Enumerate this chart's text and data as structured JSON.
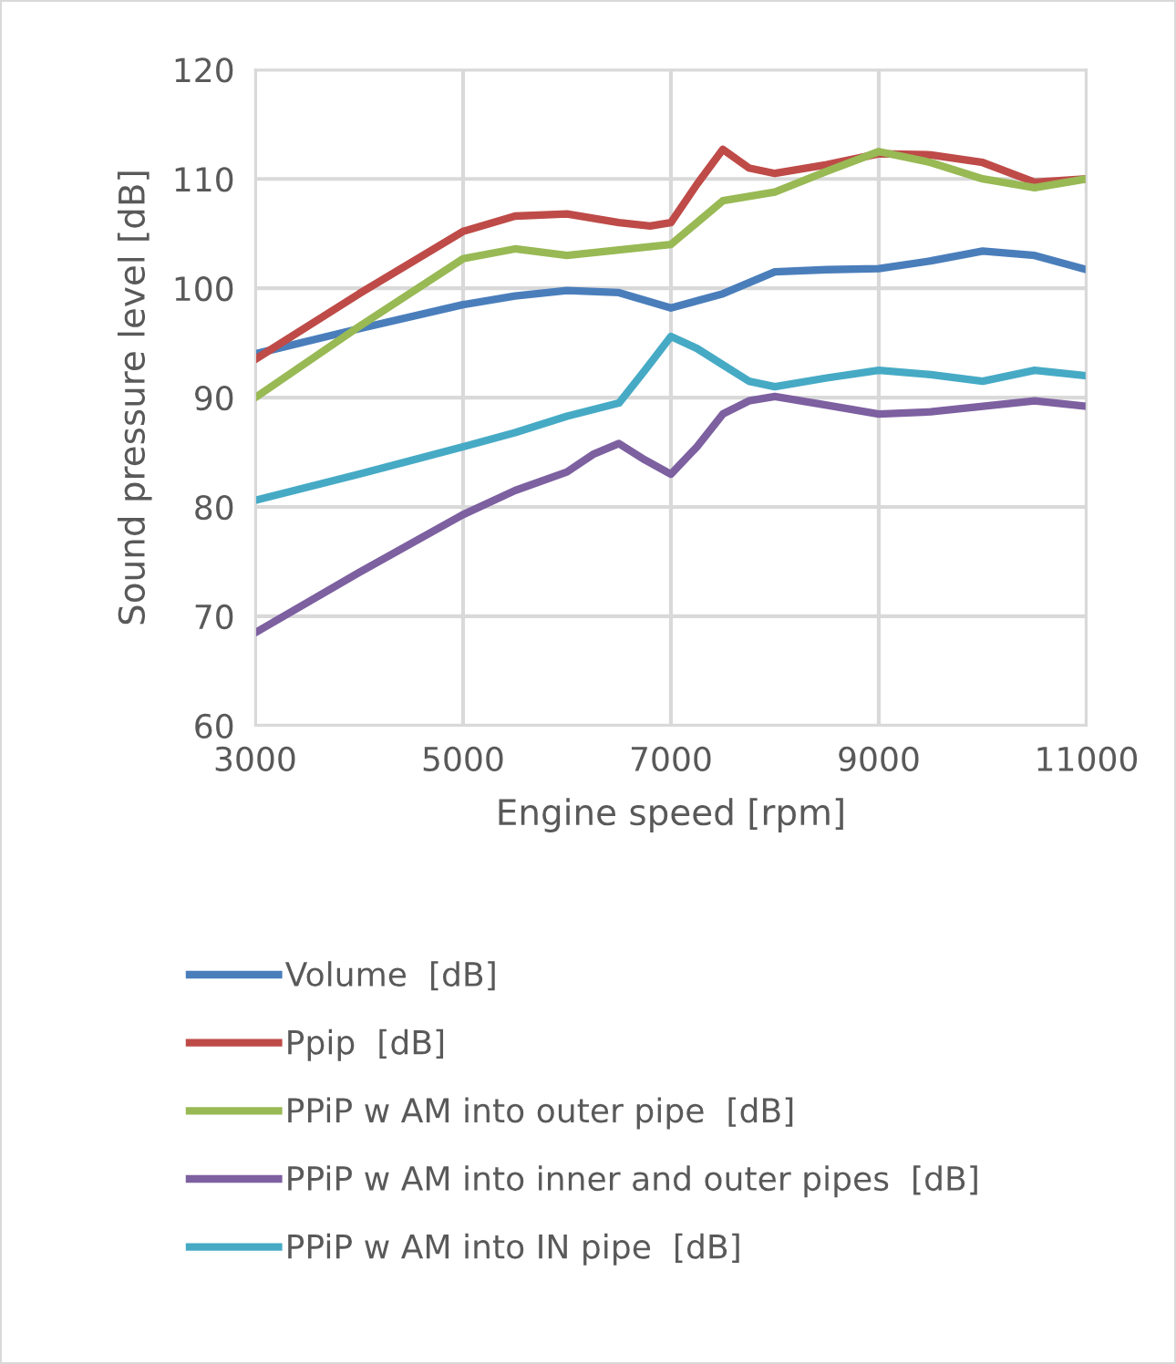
{
  "chart_data": {
    "type": "line",
    "xlabel": "Engine speed [rpm]",
    "ylabel": "Sound pressure level [dB]",
    "xlim": [
      3000,
      11000
    ],
    "xticks": [
      3000,
      5000,
      7000,
      9000,
      11000
    ],
    "ylim": [
      60,
      120
    ],
    "yticks": [
      60,
      70,
      80,
      90,
      100,
      110,
      120
    ],
    "grid": true,
    "legend": "bottom",
    "line_style": "solid",
    "marker": "none",
    "series": [
      {
        "name": "Volume  [dB]",
        "color": "#4a7ebb",
        "x": [
          3000,
          4000,
          5000,
          5500,
          6000,
          6500,
          7000,
          7500,
          8000,
          8500,
          9000,
          9500,
          10000,
          10500,
          11000
        ],
        "values": [
          94,
          96.3,
          98.5,
          99.3,
          99.8,
          99.6,
          98.2,
          99.5,
          101.5,
          101.7,
          101.8,
          102.5,
          103.4,
          103,
          101.7
        ]
      },
      {
        "name": "Ppip  [dB]",
        "color": "#be4b48",
        "x": [
          3000,
          4000,
          5000,
          5500,
          6000,
          6500,
          6800,
          7000,
          7250,
          7500,
          7750,
          8000,
          8500,
          9000,
          9500,
          10000,
          10500,
          11000
        ],
        "values": [
          93.5,
          99.5,
          105.2,
          106.6,
          106.8,
          106,
          105.7,
          106,
          109.5,
          112.7,
          111,
          110.5,
          111.3,
          112.3,
          112.2,
          111.5,
          109.7,
          110
        ]
      },
      {
        "name": "PPiP w AM into outer pipe  [dB]",
        "color": "#98b954",
        "x": [
          3000,
          4000,
          5000,
          5500,
          6000,
          6500,
          7000,
          7250,
          7500,
          8000,
          8500,
          9000,
          9500,
          10000,
          10500,
          11000
        ],
        "values": [
          90,
          96.5,
          102.7,
          103.6,
          103,
          103.5,
          104,
          106,
          108,
          108.8,
          110.7,
          112.5,
          111.5,
          110,
          109.2,
          110
        ]
      },
      {
        "name": "PPiP w AM into inner and outer pipes  [dB]",
        "color": "#7d60a0",
        "x": [
          3000,
          4000,
          5000,
          5500,
          6000,
          6250,
          6500,
          6750,
          7000,
          7250,
          7500,
          7750,
          8000,
          8500,
          9000,
          9500,
          10000,
          10500,
          11000
        ],
        "values": [
          68.5,
          74,
          79.3,
          81.5,
          83.2,
          84.8,
          85.8,
          84.3,
          83,
          85.5,
          88.5,
          89.7,
          90.1,
          89.3,
          88.5,
          88.7,
          89.2,
          89.7,
          89.2
        ]
      },
      {
        "name": "PPiP w AM into IN pipe  [dB]",
        "color": "#46aac5",
        "x": [
          3000,
          4000,
          5000,
          5500,
          6000,
          6500,
          6750,
          7000,
          7250,
          7500,
          7750,
          8000,
          8500,
          9000,
          9500,
          10000,
          10500,
          11000
        ],
        "values": [
          80.6,
          83,
          85.5,
          86.8,
          88.3,
          89.5,
          92.5,
          95.6,
          94.5,
          93,
          91.5,
          91,
          91.8,
          92.5,
          92.1,
          91.5,
          92.5,
          92
        ]
      }
    ]
  }
}
